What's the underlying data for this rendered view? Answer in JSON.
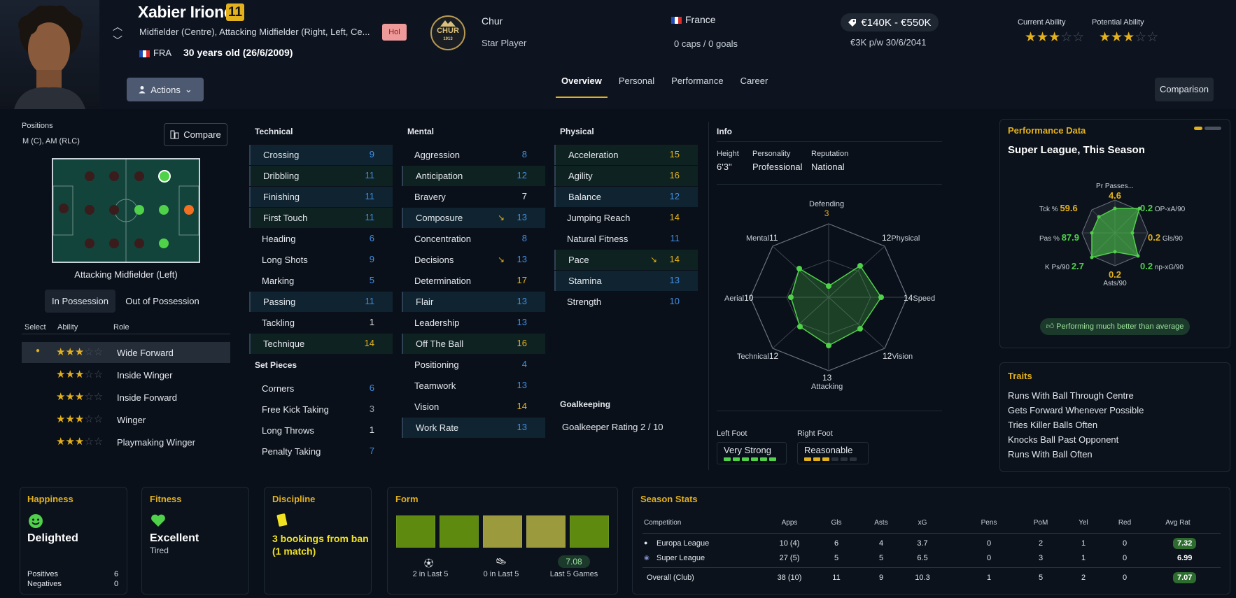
{
  "player": {
    "name": "Xabier Iriondo",
    "number": "11",
    "positions": "Midfielder (Centre), Attacking Midfielder (Right, Left, Ce...",
    "nationality_code": "FRA",
    "age": "30 years old (26/6/2009)",
    "hol_badge": "Hol",
    "actions_label": "Actions"
  },
  "club": {
    "name": "Chur",
    "role": "Star Player",
    "crest_text_top": "CHUR",
    "crest_text_bottom": "1913"
  },
  "country": {
    "name": "France",
    "caps": "0 caps / 0 goals"
  },
  "contract": {
    "value": "€140K - €550K",
    "wage": "€3K p/w 30/6/2041"
  },
  "ability": {
    "current_label": "Current Ability",
    "current_stars": 2.5,
    "potential_label": "Potential Ability",
    "potential_stars": 2.5
  },
  "tabs": [
    "Overview",
    "Personal",
    "Performance",
    "Career"
  ],
  "comparison_label": "Comparison",
  "positions_panel": {
    "title": "Positions",
    "value": "M (C), AM (RLC)",
    "compare_label": "Compare",
    "selected_position": "Attacking Midfielder (Left)",
    "in_possession": "In Possession",
    "out_of_possession": "Out of Possession",
    "headers": {
      "select": "Select",
      "ability": "Ability",
      "role": "Role"
    },
    "roles": [
      {
        "name": "Wide Forward",
        "stars": 2.5,
        "selected": true
      },
      {
        "name": "Inside Winger",
        "stars": 2.5
      },
      {
        "name": "Inside Forward",
        "stars": 2.5
      },
      {
        "name": "Winger",
        "stars": 2.5
      },
      {
        "name": "Playmaking Winger",
        "stars": 2.5
      }
    ]
  },
  "technical": {
    "title": "Technical",
    "items": [
      {
        "name": "Crossing",
        "value": "9"
      },
      {
        "name": "Dribbling",
        "value": "11"
      },
      {
        "name": "Finishing",
        "value": "11"
      },
      {
        "name": "First Touch",
        "value": "11"
      },
      {
        "name": "Heading",
        "value": "6"
      },
      {
        "name": "Long Shots",
        "value": "9"
      },
      {
        "name": "Marking",
        "value": "5"
      },
      {
        "name": "Passing",
        "value": "11"
      },
      {
        "name": "Tackling",
        "value": "1"
      },
      {
        "name": "Technique",
        "value": "14"
      }
    ]
  },
  "set_pieces": {
    "title": "Set Pieces",
    "items": [
      {
        "name": "Corners",
        "value": "6"
      },
      {
        "name": "Free Kick Taking",
        "value": "3"
      },
      {
        "name": "Long Throws",
        "value": "1"
      },
      {
        "name": "Penalty Taking",
        "value": "7"
      }
    ]
  },
  "mental": {
    "title": "Mental",
    "items": [
      {
        "name": "Aggression",
        "value": "8"
      },
      {
        "name": "Anticipation",
        "value": "12"
      },
      {
        "name": "Bravery",
        "value": "7"
      },
      {
        "name": "Composure",
        "value": "13"
      },
      {
        "name": "Concentration",
        "value": "8"
      },
      {
        "name": "Decisions",
        "value": "13"
      },
      {
        "name": "Determination",
        "value": "17"
      },
      {
        "name": "Flair",
        "value": "13"
      },
      {
        "name": "Leadership",
        "value": "13"
      },
      {
        "name": "Off The Ball",
        "value": "16"
      },
      {
        "name": "Positioning",
        "value": "4"
      },
      {
        "name": "Teamwork",
        "value": "13"
      },
      {
        "name": "Vision",
        "value": "14"
      },
      {
        "name": "Work Rate",
        "value": "13"
      }
    ]
  },
  "physical": {
    "title": "Physical",
    "items": [
      {
        "name": "Acceleration",
        "value": "15"
      },
      {
        "name": "Agility",
        "value": "16"
      },
      {
        "name": "Balance",
        "value": "12"
      },
      {
        "name": "Jumping Reach",
        "value": "14"
      },
      {
        "name": "Natural Fitness",
        "value": "11"
      },
      {
        "name": "Pace",
        "value": "14"
      },
      {
        "name": "Stamina",
        "value": "13"
      },
      {
        "name": "Strength",
        "value": "10"
      }
    ]
  },
  "goalkeeping": {
    "title": "Goalkeeping",
    "rating": "Goalkeeper Rating 2 / 10"
  },
  "info": {
    "title": "Info",
    "height_label": "Height",
    "height": "6'3\"",
    "personality_label": "Personality",
    "personality": "Professional",
    "reputation_label": "Reputation",
    "reputation": "National",
    "radar": [
      {
        "label": "Defending",
        "value": "3"
      },
      {
        "label": "Physical",
        "value": "12"
      },
      {
        "label": "Speed",
        "value": "14"
      },
      {
        "label": "Vision",
        "value": "12"
      },
      {
        "label": "Attacking",
        "value": "13"
      },
      {
        "label": "Technical",
        "value": "12"
      },
      {
        "label": "Aerial",
        "value": "10"
      },
      {
        "label": "Mental",
        "value": "11"
      }
    ],
    "left_foot_label": "Left Foot",
    "left_foot": "Very Strong",
    "right_foot_label": "Right Foot",
    "right_foot": "Reasonable"
  },
  "performance": {
    "title": "Performance Data",
    "subtitle": "Super League, This Season",
    "stats": [
      {
        "label": "Pr Passes...",
        "value": "4.6"
      },
      {
        "label": "OP-xA/90",
        "value": "0.2"
      },
      {
        "label": "Gls/90",
        "value": "0.2"
      },
      {
        "label": "np-xG/90",
        "value": "0.2"
      },
      {
        "label": "Asts/90",
        "value": "0.2"
      },
      {
        "label": "K Ps/90",
        "value": "2.7"
      },
      {
        "label": "Pas %",
        "value": "87.9"
      },
      {
        "label": "Tck %",
        "value": "59.6"
      }
    ],
    "verdict": "Performing much better than average"
  },
  "traits": {
    "title": "Traits",
    "items": [
      "Runs With Ball Through Centre",
      "Gets Forward Whenever Possible",
      "Tries Killer Balls Often",
      "Knocks Ball Past Opponent",
      "Runs With Ball Often"
    ]
  },
  "happiness": {
    "title": "Happiness",
    "value": "Delighted",
    "positives_label": "Positives",
    "positives": "6",
    "negatives_label": "Negatives",
    "negatives": "0"
  },
  "fitness": {
    "title": "Fitness",
    "value": "Excellent",
    "sub": "Tired"
  },
  "discipline": {
    "title": "Discipline",
    "value": "3 bookings from ban (1 match)"
  },
  "form": {
    "title": "Form",
    "boxes": [
      "#5f8a10",
      "#5f8a10",
      "#9b9a3c",
      "#9b9a3c",
      "#5f8a10"
    ],
    "goals": "2 in Last 5",
    "assists": "0 in Last 5",
    "avg": "7.08",
    "avg_label": "Last 5 Games"
  },
  "season_stats": {
    "title": "Season Stats",
    "headers": [
      "Competition",
      "Apps",
      "Gls",
      "Asts",
      "xG",
      "Pens",
      "PoM",
      "Yel",
      "Red",
      "Avg Rat"
    ],
    "rows": [
      [
        "Europa League",
        "10 (4)",
        "6",
        "4",
        "3.7",
        "0",
        "2",
        "1",
        "0",
        "7.32"
      ],
      [
        "Super League",
        "27 (5)",
        "5",
        "5",
        "6.5",
        "0",
        "3",
        "1",
        "0",
        "6.99"
      ],
      [
        "Overall (Club)",
        "38 (10)",
        "11",
        "9",
        "10.3",
        "1",
        "5",
        "2",
        "0",
        "7.07"
      ]
    ]
  },
  "colors": {
    "accent": "#e3b11e",
    "blue": "#3f8ee6",
    "green": "#4fd14a",
    "bg": "#0a1019"
  }
}
